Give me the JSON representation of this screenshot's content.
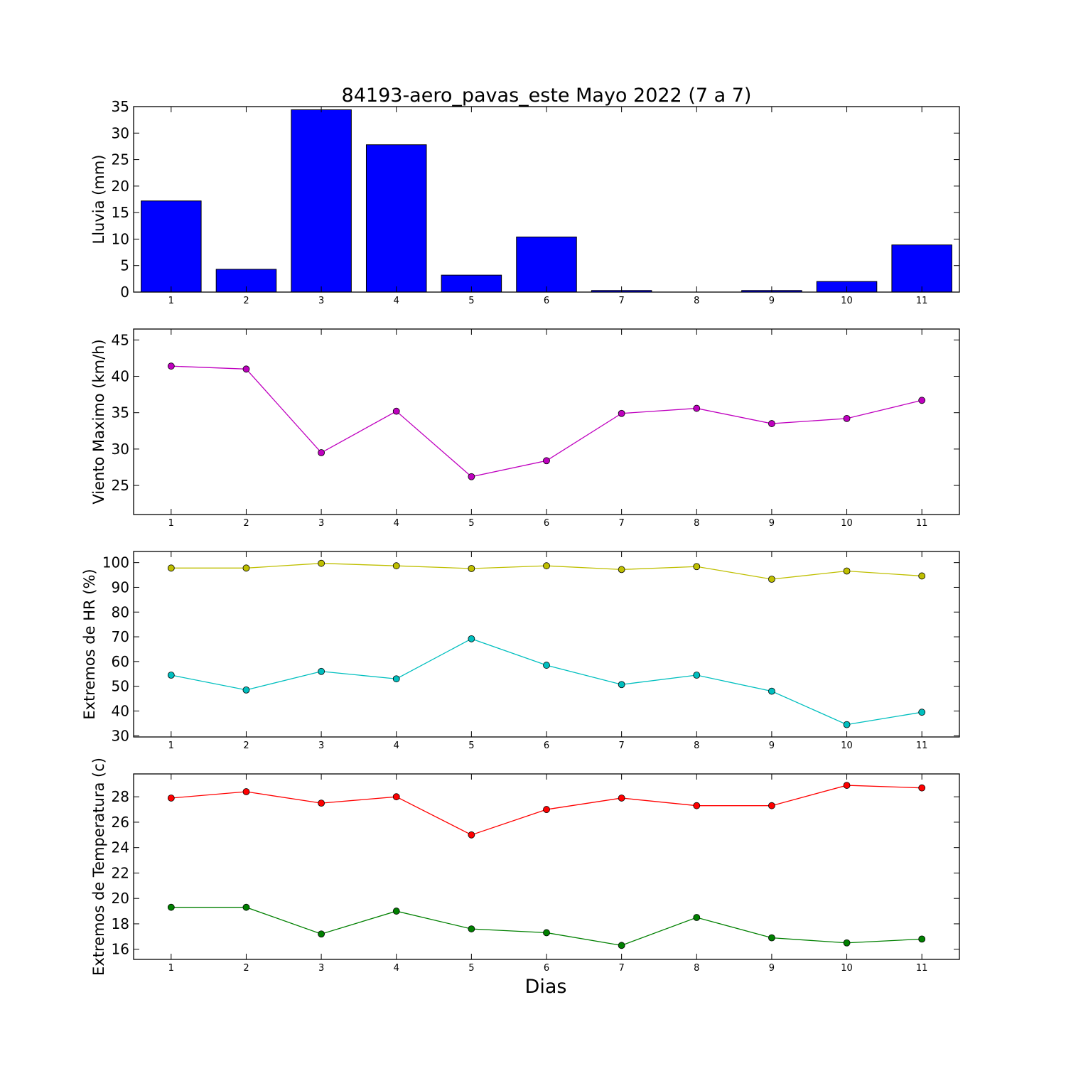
{
  "title": "84193-aero_pavas_este Mayo 2022  (7 a 7)",
  "xlabel": "Dias",
  "chart_data": [
    {
      "type": "bar",
      "ylabel": "Lluvia (mm)",
      "x": [
        1,
        2,
        3,
        4,
        5,
        6,
        7,
        8,
        9,
        10,
        11
      ],
      "ylim": [
        0,
        35
      ],
      "yticks": [
        0,
        5,
        10,
        15,
        20,
        25,
        30,
        35
      ],
      "series": [
        {
          "color": "#0000ff",
          "values": [
            17.2,
            4.3,
            34.4,
            27.8,
            3.2,
            10.4,
            0.3,
            0.0,
            0.3,
            2.0,
            8.9
          ]
        }
      ]
    },
    {
      "type": "line",
      "ylabel": "Viento Maximo (km/h)",
      "x": [
        1,
        2,
        3,
        4,
        5,
        6,
        7,
        8,
        9,
        10,
        11
      ],
      "ylim": [
        21,
        46.5
      ],
      "yticks": [
        25,
        30,
        35,
        40,
        45
      ],
      "series": [
        {
          "color": "#bf00bf",
          "values": [
            41.4,
            41.0,
            29.5,
            35.2,
            26.2,
            28.4,
            34.9,
            35.6,
            33.5,
            34.2,
            36.7
          ]
        }
      ]
    },
    {
      "type": "line",
      "ylabel": "Extremos de HR (%)",
      "x": [
        1,
        2,
        3,
        4,
        5,
        6,
        7,
        8,
        9,
        10,
        11
      ],
      "ylim": [
        29.5,
        104.5
      ],
      "yticks": [
        30,
        40,
        50,
        60,
        70,
        80,
        90,
        100
      ],
      "series": [
        {
          "color": "#bfbf00",
          "values": [
            97.8,
            97.8,
            99.7,
            98.7,
            97.6,
            98.7,
            97.2,
            98.4,
            93.3,
            96.6,
            94.6
          ]
        },
        {
          "color": "#00bfbf",
          "values": [
            54.5,
            48.5,
            56.0,
            53.0,
            69.2,
            58.5,
            50.7,
            54.5,
            48.0,
            34.5,
            39.5
          ]
        }
      ]
    },
    {
      "type": "line",
      "ylabel": "Extremos de Temperatura (c)",
      "x": [
        1,
        2,
        3,
        4,
        5,
        6,
        7,
        8,
        9,
        10,
        11
      ],
      "ylim": [
        15.2,
        29.8
      ],
      "yticks": [
        16,
        18,
        20,
        22,
        24,
        26,
        28
      ],
      "series": [
        {
          "color": "#ff0000",
          "values": [
            27.9,
            28.4,
            27.5,
            28.0,
            25.0,
            27.0,
            27.9,
            27.3,
            27.3,
            28.9,
            28.7
          ]
        },
        {
          "color": "#008000",
          "values": [
            19.3,
            19.3,
            17.2,
            19.0,
            17.6,
            17.3,
            16.3,
            18.5,
            16.9,
            16.5,
            16.8
          ]
        }
      ]
    }
  ]
}
